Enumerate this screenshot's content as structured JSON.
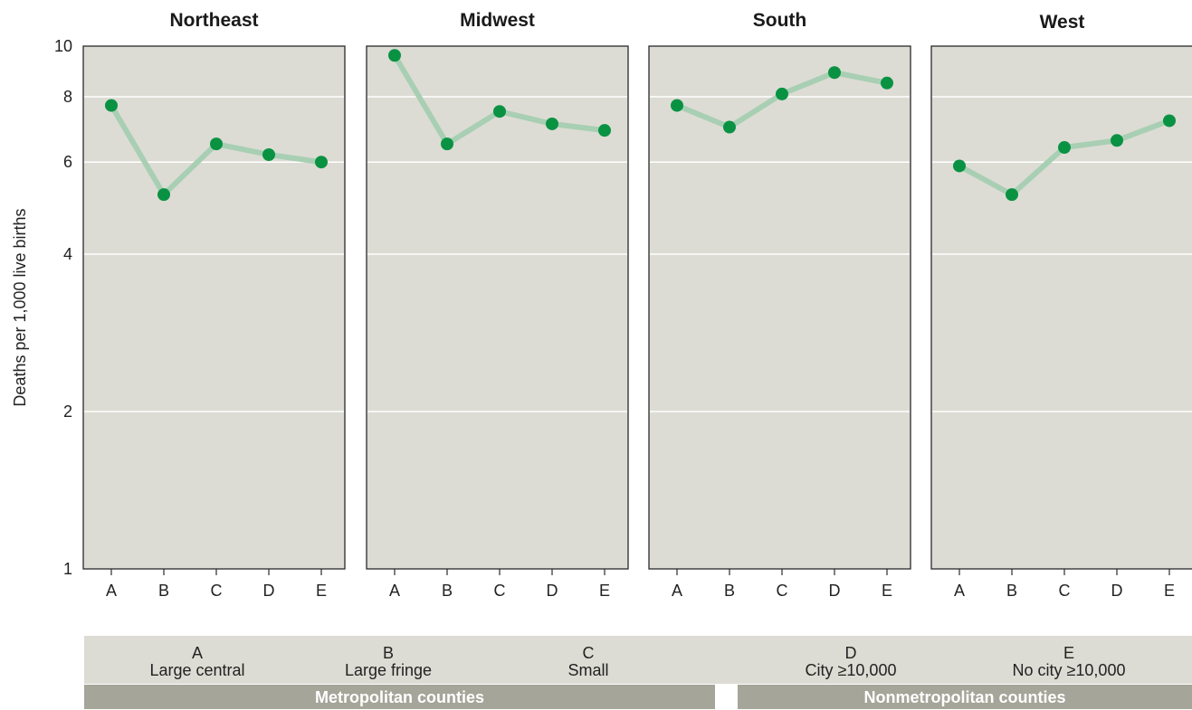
{
  "chart_data": {
    "type": "line",
    "ylabel": "Deaths per 1,000 live births",
    "yscale": "log",
    "ylim": [
      1,
      10
    ],
    "yticks": [
      1,
      2,
      4,
      6,
      8,
      10
    ],
    "grid": true,
    "categories": [
      "A",
      "B",
      "C",
      "D",
      "E"
    ],
    "panels": [
      {
        "title": "Northeast",
        "values": [
          7.7,
          5.2,
          6.5,
          6.2,
          6.0
        ]
      },
      {
        "title": "Midwest",
        "values": [
          9.6,
          6.5,
          7.5,
          7.1,
          6.9
        ]
      },
      {
        "title": "South",
        "values": [
          7.7,
          7.0,
          8.1,
          8.9,
          8.5
        ]
      },
      {
        "title": "West",
        "values": [
          5.9,
          5.2,
          6.4,
          6.6,
          7.2
        ]
      }
    ],
    "colors": {
      "line": "#a8cfb3",
      "point": "#0a9243",
      "panel_bg": "#dcdcd4",
      "grid": "#ffffff"
    }
  },
  "legend": {
    "items": [
      {
        "code": "A",
        "label": "Large central"
      },
      {
        "code": "B",
        "label": "Large fringe"
      },
      {
        "code": "C",
        "label": "Small"
      },
      {
        "code": "D",
        "label": "City ≥10,000"
      },
      {
        "code": "E",
        "label": "No city ≥10,000"
      }
    ],
    "groups": [
      "Metropolitan counties",
      "Nonmetropolitan counties"
    ]
  }
}
